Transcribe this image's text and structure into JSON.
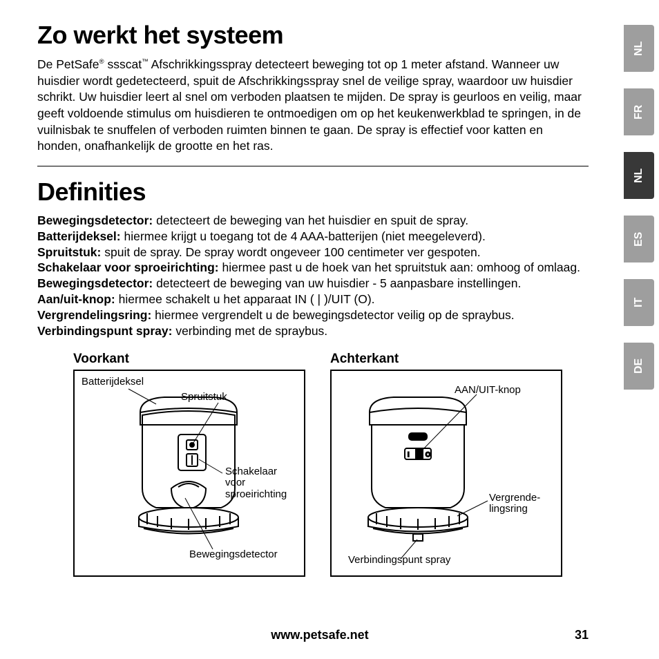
{
  "heading1": "Zo werkt het systeem",
  "intro_html": "De PetSafe<span class='sup'>®</span> ssscat<span class='sup'>™</span> Afschrikkingsspray detecteert beweging tot op 1 meter afstand. Wanneer uw huisdier wordt gedetecteerd, spuit de Afschrikkingsspray snel de veilige spray, waardoor uw huisdier schrikt. Uw huisdier leert al snel om verboden plaatsen te mijden. De spray is geurloos en veilig, maar geeft voldoende stimulus om huisdieren te ontmoedigen om op het keukenwerkblad te springen, in de vuilnisbak te snuffelen of verboden ruimten binnen te gaan. De spray is effectief voor katten en honden, onafhankelijk de grootte en het ras.",
  "heading2": "Definities",
  "defs": [
    {
      "term": "Bewegingsdetector:",
      "desc": " detecteert de beweging van het huisdier en spuit de spray."
    },
    {
      "term": "Batterijdeksel:",
      "desc": " hiermee krijgt u toegang tot de 4 AAA-batterijen (niet meegeleverd)."
    },
    {
      "term": "Spruitstuk:",
      "desc": " spuit de spray. De spray wordt ongeveer 100 centimeter ver gespoten."
    },
    {
      "term": "Schakelaar voor sproeirichting:",
      "desc": " hiermee past u de hoek van het spruitstuk aan: omhoog of omlaag."
    },
    {
      "term": "Bewegingsdetector:",
      "desc": " detecteert de beweging van uw huisdier - 5 aanpasbare instellingen."
    },
    {
      "term": "Aan/uit-knop:",
      "desc": " hiermee schakelt u het apparaat IN ( | )/UIT (O)."
    },
    {
      "term": "Vergrendelingsring:",
      "desc": " hiermee vergrendelt u de bewegingsdetector veilig op de spraybus."
    },
    {
      "term": "Verbindingspunt spray:",
      "desc": " verbinding met de spraybus."
    }
  ],
  "diagram_front_title": "Voorkant",
  "diagram_back_title": "Achterkant",
  "labels_front": {
    "battery": "Batterijdeksel",
    "nozzle": "Spruitstuk",
    "switch_l1": "Schakelaar",
    "switch_l2": "voor",
    "switch_l3": "sproeirichting",
    "motion": "Bewegingsdetector"
  },
  "labels_back": {
    "onoff": "AAN/UIT-knop",
    "lock_l1": "Vergrende-",
    "lock_l2": "lingsring",
    "conn": "Verbindingspunt spray"
  },
  "tabs": [
    {
      "code": "NL",
      "shade": "light"
    },
    {
      "code": "FR",
      "shade": "light"
    },
    {
      "code": "NL",
      "shade": "dark"
    },
    {
      "code": "ES",
      "shade": "light"
    },
    {
      "code": "IT",
      "shade": "light"
    },
    {
      "code": "DE",
      "shade": "light"
    }
  ],
  "footer_url": "www.petsafe.net",
  "page_number": "31",
  "colors": {
    "tab_light": "#9e9e9e",
    "tab_dark": "#383838",
    "text": "#000000",
    "bg": "#ffffff"
  }
}
